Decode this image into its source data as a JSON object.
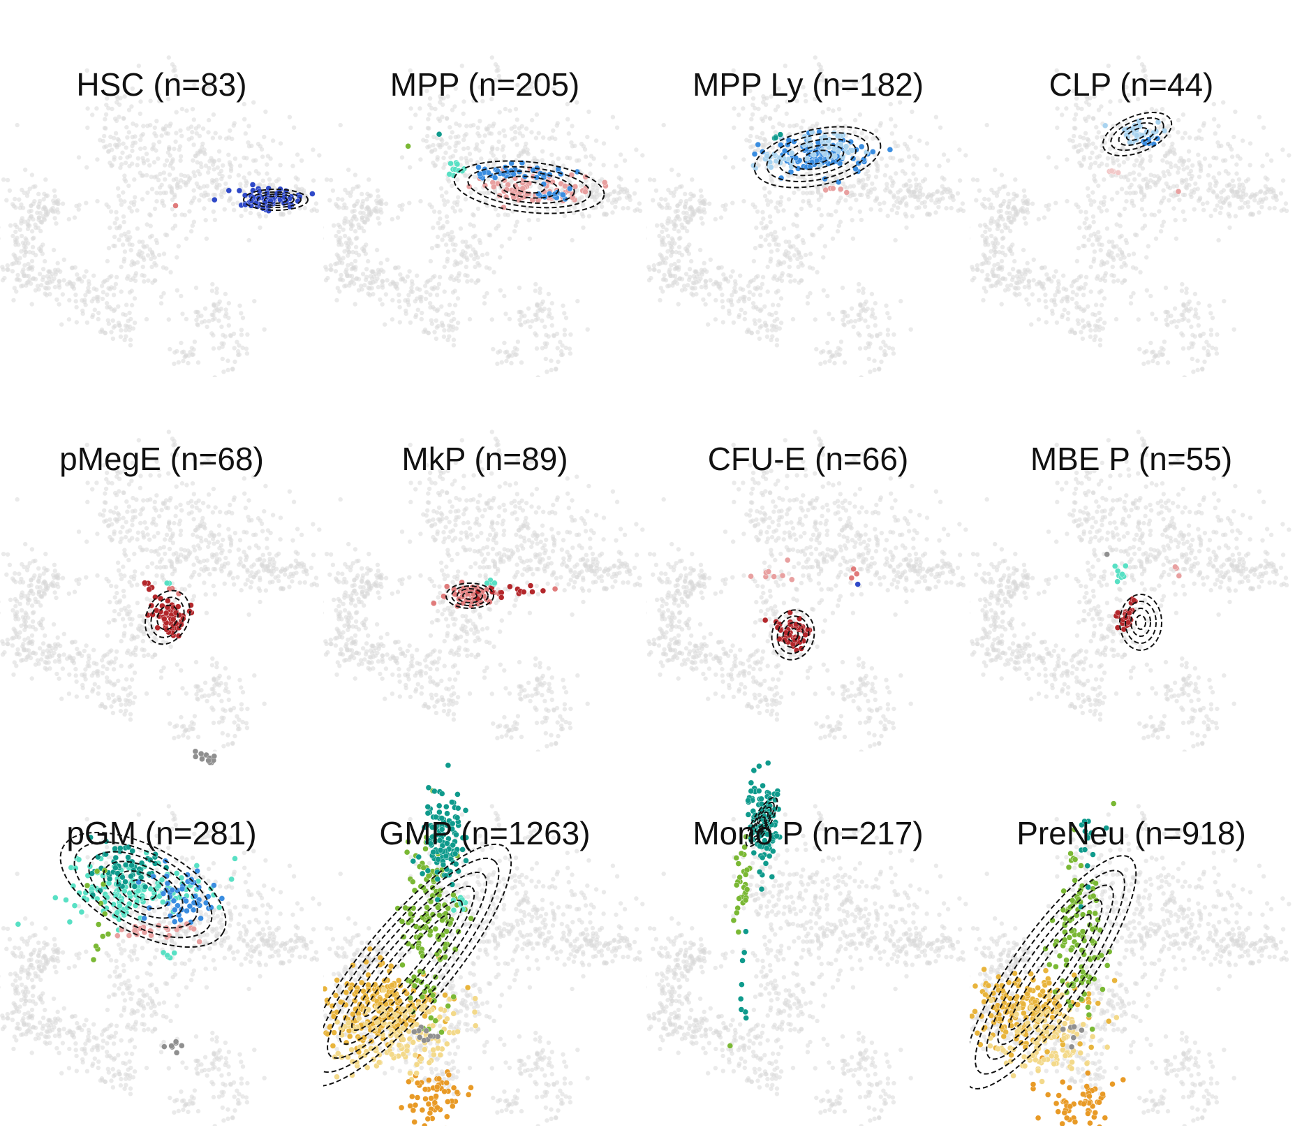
{
  "chart_data": {
    "type": "scatter",
    "layout": {
      "rows": 3,
      "cols": 4
    },
    "panels": [
      {
        "title": "HSC (n=83)",
        "population": "HSC",
        "n": 83,
        "dominant_color": "#2f49c8",
        "region": "right-tail"
      },
      {
        "title": "MPP (n=205)",
        "population": "MPP",
        "n": 205,
        "dominant_color": "#e8a0a0",
        "region": "central-right"
      },
      {
        "title": "MPP Ly (n=182)",
        "population": "MPP Ly",
        "n": 182,
        "dominant_color": "#3a8de0",
        "region": "upper-center"
      },
      {
        "title": "CLP (n=44)",
        "population": "CLP",
        "n": 44,
        "dominant_color": "#a9d3ef",
        "region": "upper-top"
      },
      {
        "title": "pMegE (n=68)",
        "population": "pMegE",
        "n": 68,
        "dominant_color": "#b3272b",
        "region": "center-low"
      },
      {
        "title": "MkP (n=89)",
        "population": "MkP",
        "n": 89,
        "dominant_color": "#e07b7b",
        "region": "center"
      },
      {
        "title": "CFU-E (n=66)",
        "population": "CFU-E",
        "n": 66,
        "dominant_color": "#b3272b",
        "region": "center-lower"
      },
      {
        "title": "MBE P (n=55)",
        "population": "MBE P",
        "n": 55,
        "dominant_color": "#b3272b",
        "region": "center-lower-right"
      },
      {
        "title": "pGM (n=281)",
        "population": "pGM",
        "n": 281,
        "dominant_color": "#58e0c4",
        "region": "upper-left"
      },
      {
        "title": "GMP (n=1263)",
        "population": "GMP",
        "n": 1263,
        "dominant_color": "#e8b43c",
        "region": "left-arm"
      },
      {
        "title": "Mono P (n=217)",
        "population": "Mono P",
        "n": 217,
        "dominant_color": "#0f9a8c",
        "region": "upper-left-tip"
      },
      {
        "title": "PreNeu (n=918)",
        "population": "PreNeu",
        "n": 918,
        "dominant_color": "#e8b43c",
        "region": "left-arm"
      }
    ],
    "background_color": "#d9d9d9",
    "contour_style": "black-dashed",
    "grid": false,
    "legend": "none"
  }
}
